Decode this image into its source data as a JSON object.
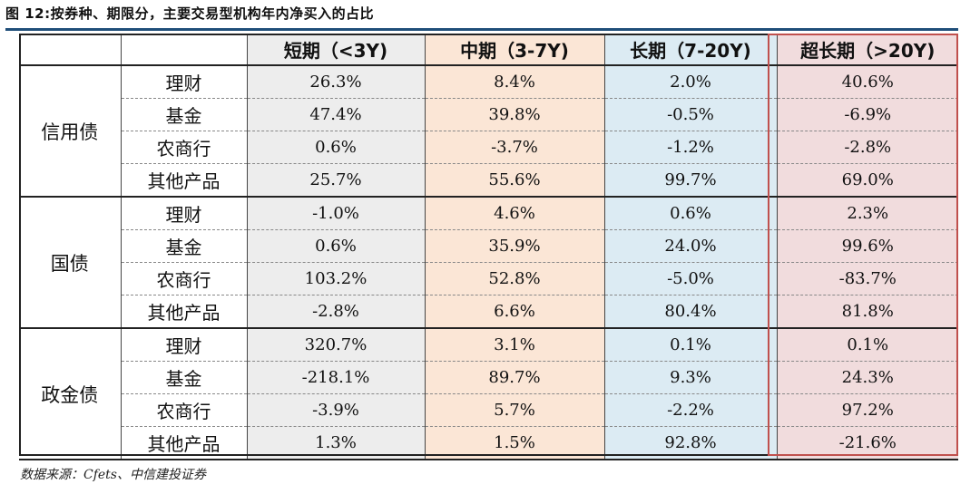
{
  "title": "图 12:按券种、期限分，主要交易型机构年内净买入的占比",
  "source": "数据来源：Cfets、中信建投证券",
  "columns": [
    "短期（<3Y)",
    "中期（3-7Y)",
    "长期（7-20Y)",
    "超长期（>20Y)"
  ],
  "colors": {
    "short": "#ededed",
    "mid": "#fbe6d6",
    "long": "#dcebf3",
    "ultra": "#f1dcdd",
    "rule": "#1f4e79",
    "highlight": "#c0504d"
  },
  "groups": [
    {
      "name": "信用债",
      "rows": [
        {
          "label": "理财",
          "values": [
            "26.3%",
            "8.4%",
            "2.0%",
            "40.6%"
          ]
        },
        {
          "label": "基金",
          "values": [
            "47.4%",
            "39.8%",
            "-0.5%",
            "-6.9%"
          ]
        },
        {
          "label": "农商行",
          "values": [
            "0.6%",
            "-3.7%",
            "-1.2%",
            "-2.8%"
          ]
        },
        {
          "label": "其他产品",
          "values": [
            "25.7%",
            "55.6%",
            "99.7%",
            "69.0%"
          ]
        }
      ]
    },
    {
      "name": "国债",
      "rows": [
        {
          "label": "理财",
          "values": [
            "-1.0%",
            "4.6%",
            "0.6%",
            "2.3%"
          ]
        },
        {
          "label": "基金",
          "values": [
            "0.6%",
            "35.9%",
            "24.0%",
            "99.6%"
          ]
        },
        {
          "label": "农商行",
          "values": [
            "103.2%",
            "52.8%",
            "-5.0%",
            "-83.7%"
          ]
        },
        {
          "label": "其他产品",
          "values": [
            "-2.8%",
            "6.6%",
            "80.4%",
            "81.8%"
          ]
        }
      ]
    },
    {
      "name": "政金债",
      "rows": [
        {
          "label": "理财",
          "values": [
            "320.7%",
            "3.1%",
            "0.1%",
            "0.1%"
          ]
        },
        {
          "label": "基金",
          "values": [
            "-218.1%",
            "89.7%",
            "9.3%",
            "24.3%"
          ]
        },
        {
          "label": "农商行",
          "values": [
            "-3.9%",
            "5.7%",
            "-2.2%",
            "97.2%"
          ]
        },
        {
          "label": "其他产品",
          "values": [
            "1.3%",
            "1.5%",
            "92.8%",
            "-21.6%"
          ]
        }
      ]
    }
  ]
}
